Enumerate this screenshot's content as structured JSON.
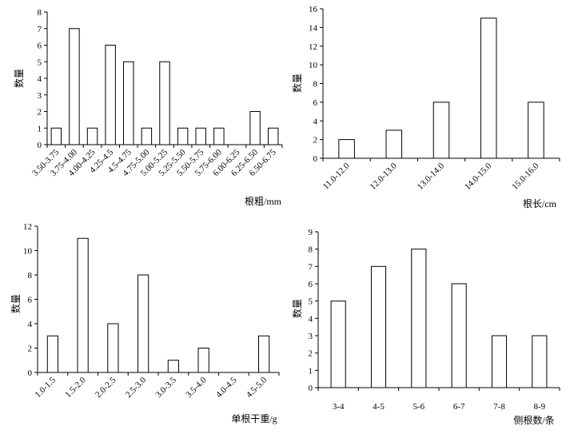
{
  "chart_data": [
    {
      "type": "bar",
      "title": "",
      "xlabel": "根粗/mm",
      "ylabel": "数量",
      "ylim": [
        0,
        8
      ],
      "yticks": [
        0,
        1,
        2,
        3,
        4,
        5,
        6,
        7,
        8
      ],
      "categories": [
        "3.50-3.75",
        "3.75-4.00",
        "4.00-4.25",
        "4.25-4.5",
        "4.5-4.75",
        "4.75-5.00",
        "5.00-5.25",
        "5.25-5.50",
        "5.50-5.75",
        "5.75-6.00",
        "6.00-6.25",
        "6.25-6.50",
        "6.50-6.75"
      ],
      "values": [
        1,
        7,
        1,
        6,
        5,
        1,
        5,
        1,
        1,
        1,
        0,
        2,
        1
      ],
      "grid": false,
      "legend": "none"
    },
    {
      "type": "bar",
      "title": "",
      "xlabel": "根长/cm",
      "ylabel": "数量",
      "ylim": [
        0,
        16
      ],
      "yticks": [
        0,
        2,
        4,
        6,
        8,
        10,
        12,
        14,
        16
      ],
      "categories": [
        "11.0-12.0",
        "12.0-13.0",
        "13.0-14.0",
        "14.0-15.0",
        "15.0-16.0"
      ],
      "values": [
        2,
        3,
        6,
        15,
        6
      ],
      "grid": false,
      "legend": "none"
    },
    {
      "type": "bar",
      "title": "",
      "xlabel": "单根干重/g",
      "ylabel": "数量",
      "ylim": [
        0,
        12
      ],
      "yticks": [
        0,
        2,
        4,
        6,
        8,
        10,
        12
      ],
      "categories": [
        "1.0-1.5",
        "1.5-2.0",
        "2.0-2.5",
        "2.5-3.0",
        "3.0-3.5",
        "3.5-4.0",
        "4.0-4.5",
        "4.5-5.0"
      ],
      "values": [
        3,
        11,
        4,
        8,
        1,
        2,
        0,
        3
      ],
      "grid": false,
      "legend": "none"
    },
    {
      "type": "bar",
      "title": "",
      "xlabel": "侧根数/条",
      "ylabel": "数量",
      "ylim": [
        0,
        9
      ],
      "yticks": [
        0,
        1,
        2,
        3,
        4,
        5,
        6,
        7,
        8,
        9
      ],
      "categories": [
        "3-4",
        "4-5",
        "5-6",
        "6-7",
        "7-8",
        "8-9"
      ],
      "values": [
        5,
        7,
        8,
        6,
        3,
        3
      ],
      "grid": false,
      "legend": "none"
    }
  ]
}
